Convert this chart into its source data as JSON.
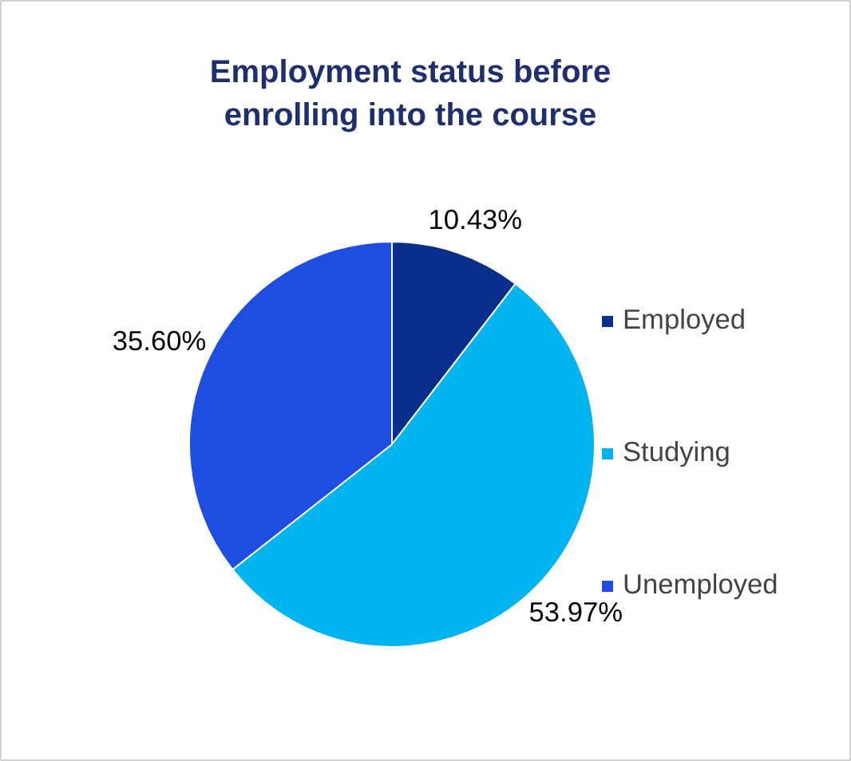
{
  "chart_data": {
    "type": "pie",
    "title": "Employment status before\nenrolling into the course",
    "categories": [
      "Employed",
      "Studying",
      "Unemployed"
    ],
    "values": [
      10.43,
      53.97,
      35.6
    ],
    "colors": [
      "#0a2f8a",
      "#00b4f0",
      "#1f4de0"
    ],
    "value_labels": [
      "10.43%",
      "53.97%",
      "35.60%"
    ],
    "legend": "right"
  }
}
